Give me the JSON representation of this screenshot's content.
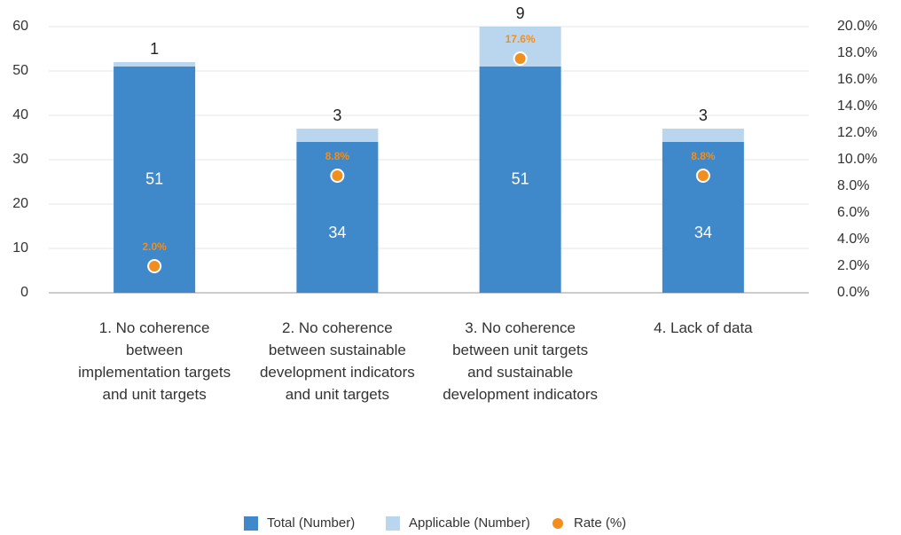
{
  "chart_data": {
    "type": "bar",
    "stacked": true,
    "categories": [
      "1. No coherence between implementation targets and unit targets",
      "2. No coherence between sustainable development indicators and unit targets",
      "3. No coherence between unit targets and sustainable development indicators",
      "4. Lack of data"
    ],
    "series": [
      {
        "name": "Total (Number)",
        "color": "#3f88c9",
        "values": [
          51,
          34,
          51,
          34
        ]
      },
      {
        "name": "Applicable (Number)",
        "color": "#bad6ee",
        "values": [
          1,
          3,
          9,
          3
        ]
      },
      {
        "name": "Rate (%)",
        "color": "#f28e1e",
        "type": "scatter",
        "axis": "y2",
        "values": [
          2.0,
          8.8,
          17.6,
          8.8
        ],
        "value_labels": [
          "2.0%",
          "8.8%",
          "17.6%",
          "8.8%"
        ]
      }
    ],
    "ylim": [
      0,
      60
    ],
    "yticks": [
      0,
      10,
      20,
      30,
      40,
      50,
      60
    ],
    "y2lim": [
      0,
      20
    ],
    "y2ticks": [
      {
        "value": 0,
        "label": "0.0%"
      },
      {
        "value": 2,
        "label": "2.0%"
      },
      {
        "value": 4,
        "label": "4.0%"
      },
      {
        "value": 6,
        "label": "6.0%"
      },
      {
        "value": 8,
        "label": "8.0%"
      },
      {
        "value": 10,
        "label": "10.0%"
      },
      {
        "value": 12,
        "label": "12.0%"
      },
      {
        "value": 14,
        "label": "14.0%"
      },
      {
        "value": 16,
        "label": "16.0%"
      },
      {
        "value": 18,
        "label": "18.0%"
      },
      {
        "value": 20,
        "label": "20.0%"
      }
    ],
    "grid": true,
    "legend": "bottom"
  }
}
